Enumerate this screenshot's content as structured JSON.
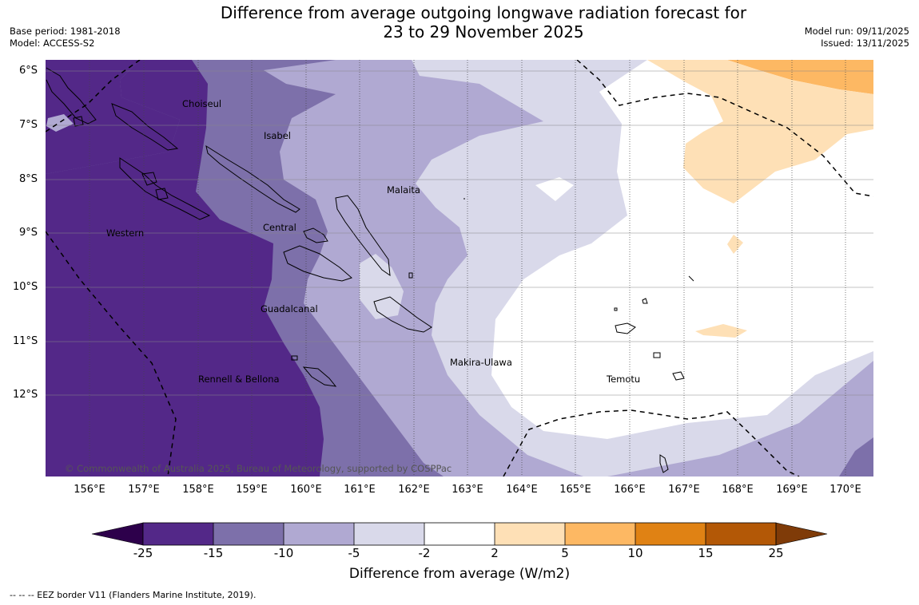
{
  "title": {
    "line1": "Difference from average outgoing longwave radiation forecast for",
    "line2": "23 to 29 November 2025"
  },
  "meta": {
    "base_period": "Base period: 1981-2018",
    "model": "Model: ACCESS-S2",
    "model_run": "Model run: 09/11/2025",
    "issued": "Issued: 13/11/2025"
  },
  "axes": {
    "lon_labels": [
      "156°E",
      "157°E",
      "158°E",
      "159°E",
      "160°E",
      "161°E",
      "162°E",
      "163°E",
      "164°E",
      "165°E",
      "166°E",
      "167°E",
      "168°E",
      "169°E",
      "170°E"
    ],
    "lat_labels": [
      "6°S",
      "7°S",
      "8°S",
      "9°S",
      "10°S",
      "11°S",
      "12°S"
    ]
  },
  "regions": [
    "Choiseul",
    "Isabel",
    "Malaita",
    "Western",
    "Central",
    "Guadalcanal",
    "Makira-Ulawa",
    "Rennell & Bellona",
    "Temotu"
  ],
  "copyright": "© Commonwealth of Australia 2025, Bureau of Meteorology, supported by COSPPac",
  "colorbar": {
    "ticks": [
      "-25",
      "-15",
      "-10",
      "-5",
      "-2",
      "2",
      "5",
      "10",
      "15",
      "25"
    ],
    "colors": [
      "#532888",
      "#7d70aa",
      "#b0a9d2",
      "#d9d9ea",
      "#ffffff",
      "#fee0b6",
      "#fdb863",
      "#e08214",
      "#b35806"
    ],
    "under_color": "#2d004b",
    "over_color": "#7f3b08",
    "title": "Difference from average (W/m2)"
  },
  "legend_note": "--  --  -- EEZ border V11 (Flanders Marine Institute, 2019)."
}
